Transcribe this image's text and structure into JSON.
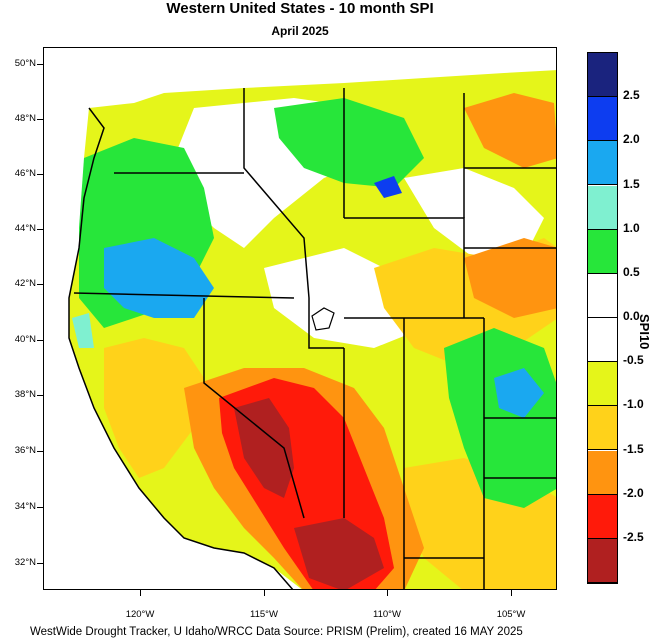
{
  "title": "Western United States - 10 month SPI",
  "subtitle": "April 2025",
  "footer": "WestWide Drought Tracker, U Idaho/WRCC Data Source: PRISM (Prelim), created 16 MAY 2025",
  "axes": {
    "lat_labels": [
      "50°N",
      "48°N",
      "46°N",
      "44°N",
      "42°N",
      "40°N",
      "38°N",
      "36°N",
      "34°N",
      "32°N"
    ],
    "lon_labels": [
      "120°W",
      "115°W",
      "110°W",
      "105°W"
    ]
  },
  "colorbar": {
    "title": "SPI10",
    "labels": [
      "2.5",
      "2.0",
      "1.5",
      "1.0",
      "0.5",
      "0.0",
      "-0.5",
      "-1.0",
      "-1.5",
      "-2.0",
      "-2.5"
    ],
    "colors": [
      "#1a237e",
      "#0d3df0",
      "#1aa8f0",
      "#7ff0d0",
      "#27e63a",
      "#ffffff",
      "#ffffff",
      "#e5f51a",
      "#ffd21a",
      "#ff9410",
      "#ff1a0a",
      "#b02020"
    ]
  },
  "map_colors": {
    "extreme_dry": "#b02020",
    "severe_dry": "#ff1a0a",
    "moderate_dry": "#ff9410",
    "dry": "#ffd21a",
    "slightly_dry": "#e5f51a",
    "near_normal": "#ffffff",
    "wet": "#27e63a",
    "very_wet": "#1aa8f0",
    "extreme_wet": "#0d3df0"
  }
}
